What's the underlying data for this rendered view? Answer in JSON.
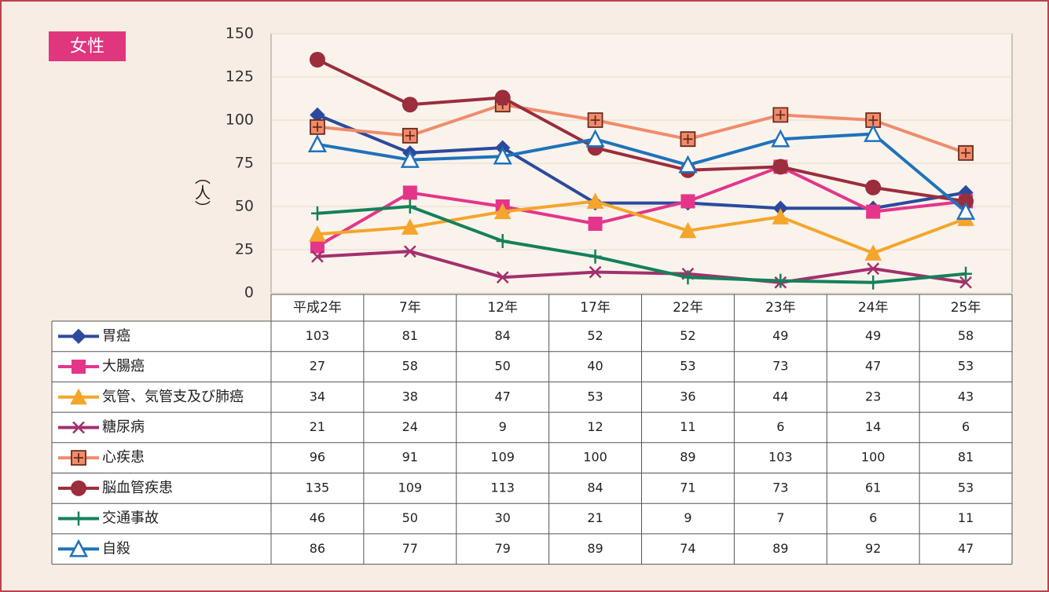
{
  "chart_data": {
    "type": "line",
    "title": "女性",
    "ylabel": "（人）",
    "categories": [
      "平成2年",
      "7年",
      "12年",
      "17年",
      "22年",
      "23年",
      "24年",
      "25年"
    ],
    "ylim": [
      0,
      150
    ],
    "yticks": [
      0,
      25,
      50,
      75,
      100,
      125,
      150
    ],
    "grid": true,
    "series": [
      {
        "name": "胃癌",
        "color": "#2b4a9e",
        "marker": "diamond",
        "values": [
          103,
          81,
          84,
          52,
          52,
          49,
          49,
          58
        ]
      },
      {
        "name": "大腸癌",
        "color": "#e5358b",
        "marker": "square",
        "values": [
          27,
          58,
          50,
          40,
          53,
          73,
          47,
          53
        ]
      },
      {
        "name": "気管、気管支及び肺癌",
        "color": "#f5a52a",
        "marker": "triangle",
        "values": [
          34,
          38,
          47,
          53,
          36,
          44,
          23,
          43
        ]
      },
      {
        "name": "糖尿病",
        "color": "#a3306c",
        "marker": "x",
        "values": [
          21,
          24,
          9,
          12,
          11,
          6,
          14,
          6
        ]
      },
      {
        "name": "心疾患",
        "color": "#f08c6c",
        "marker": "square-plus",
        "values": [
          96,
          91,
          109,
          100,
          89,
          103,
          100,
          81
        ]
      },
      {
        "name": "脳血管疾患",
        "color": "#9b2d3c",
        "marker": "circle",
        "values": [
          135,
          109,
          113,
          84,
          71,
          73,
          61,
          53
        ]
      },
      {
        "name": "交通事故",
        "color": "#15805b",
        "marker": "plus",
        "values": [
          46,
          50,
          30,
          21,
          9,
          7,
          6,
          11
        ]
      },
      {
        "name": "自殺",
        "color": "#1f72ba",
        "marker": "triangle-open",
        "values": [
          86,
          77,
          79,
          89,
          74,
          89,
          92,
          47
        ]
      }
    ]
  }
}
